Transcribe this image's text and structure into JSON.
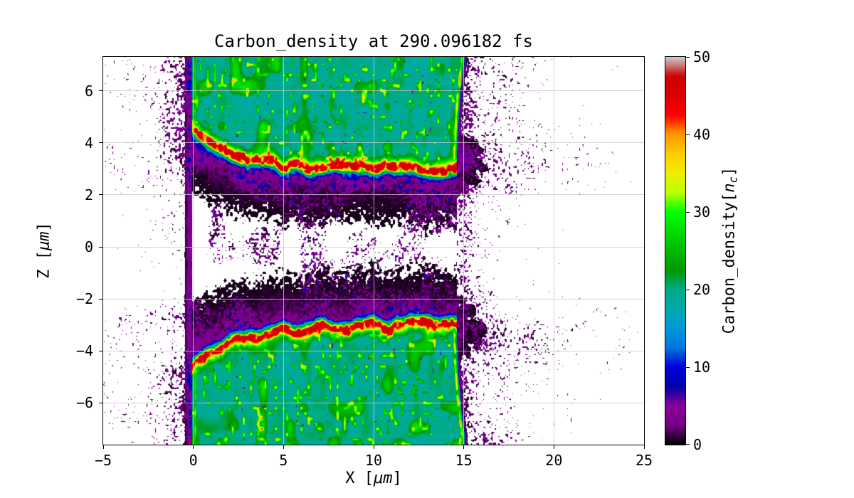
{
  "figure": {
    "title": "Carbon_density at 290.096182 fs",
    "xlabel": {
      "prefix": "X [",
      "unit": "μm",
      "suffix": "]"
    },
    "ylabel": {
      "prefix": "Z [",
      "unit": "μm",
      "suffix": "]"
    },
    "xtick_labels": [
      "−5",
      "0",
      "5",
      "10",
      "15",
      "20",
      "25"
    ],
    "ytick_labels": [
      "6",
      "4",
      "2",
      "0",
      "−2",
      "−4",
      "−6"
    ],
    "colorbar_tick_labels": [
      "0",
      "10",
      "20",
      "30",
      "40",
      "50"
    ],
    "colorbar_label": {
      "main": "Carbon_density[",
      "var": "n",
      "sub": "c",
      "suffix": "]"
    }
  },
  "chart_data": {
    "type": "heatmap",
    "title": "Carbon_density at 290.096182 fs",
    "xlabel": "X [μm]",
    "ylabel": "Z [μm]",
    "xlim": [
      -5,
      25
    ],
    "ylim": [
      -7.6,
      7.3
    ],
    "xticks": [
      -5,
      0,
      5,
      10,
      15,
      20,
      25
    ],
    "yticks": [
      6,
      4,
      2,
      0,
      -2,
      -4,
      -6
    ],
    "grid": true,
    "colorbar": {
      "label": "Carbon_density[n_c]",
      "min": 0,
      "max": 50,
      "ticks": [
        0,
        10,
        20,
        30,
        40,
        50
      ],
      "colormap": "nipy_spectral"
    },
    "features": {
      "description": "Two overdense carbon slabs (teal, ~20 nc) spanning x = 0 to 14.7 um: upper slab z = +3 to +7.3 um, lower slab z = -3 to -7.6 um. Hot compressed ridges (35-50 nc, yellow/red dotted lines) run along the inner slab faces, starting at z = +/-4.3 um near x = 0.5 and flattening to z = +/-3 um toward x = 14.6. Bright green/yellow vertical plasma edges at x = 0 and x = 14.7. Diffuse low-density plasma (0-8 nc, black/purple speckle) fills the central gap |z| < 2.5 um with white evacuated holes around x = 6-13 um, and expands outward to x = -4.5 um and x = +23.5 um.",
      "slab_x_range_um": [
        0,
        14.7
      ],
      "slab_density_nc": 20,
      "upper_slab_z_um": [
        3.0,
        7.3
      ],
      "lower_slab_z_um": [
        -7.6,
        -3.0
      ],
      "ridge_peak_density_nc": 48,
      "ridge_z_at_x0_um": 4.3,
      "ridge_z_flat_um": 3.0,
      "edge_density_nc": 35,
      "plume_density_nc": 5.5,
      "scatter_x_extent_um": [
        -4.5,
        23.5
      ],
      "scatter_density_nc": [
        0.5,
        8
      ]
    }
  }
}
